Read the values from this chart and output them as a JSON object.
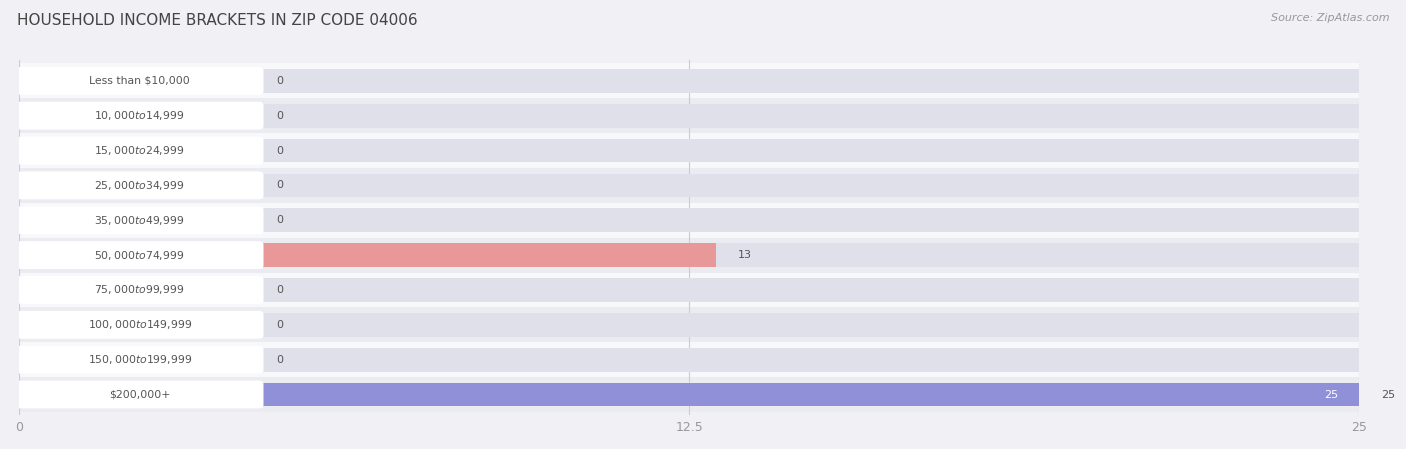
{
  "title": "HOUSEHOLD INCOME BRACKETS IN ZIP CODE 04006",
  "source": "Source: ZipAtlas.com",
  "categories": [
    "Less than $10,000",
    "$10,000 to $14,999",
    "$15,000 to $24,999",
    "$25,000 to $34,999",
    "$35,000 to $49,999",
    "$50,000 to $74,999",
    "$75,000 to $99,999",
    "$100,000 to $149,999",
    "$150,000 to $199,999",
    "$200,000+"
  ],
  "values": [
    0,
    0,
    0,
    0,
    0,
    13,
    0,
    0,
    0,
    25
  ],
  "bar_colors": [
    "#caadd8",
    "#72c4bc",
    "#aaaad8",
    "#f5a0b8",
    "#f5c88a",
    "#e89898",
    "#a0b8e8",
    "#c0a8d8",
    "#72c4bc",
    "#9090d8"
  ],
  "xlim": [
    0,
    25
  ],
  "xticks": [
    0,
    12.5,
    25
  ],
  "xtick_labels": [
    "0",
    "12.5",
    "25"
  ],
  "background_color": "#f0f0f5",
  "row_color_even": "#f8f8fb",
  "row_color_odd": "#ebebf2",
  "bar_bg_color": "#e0e0ea",
  "label_bg_color": "#ffffff",
  "label_text_color": "#555555",
  "value_text_color": "#555555",
  "value_text_color_inside": "#ffffff"
}
